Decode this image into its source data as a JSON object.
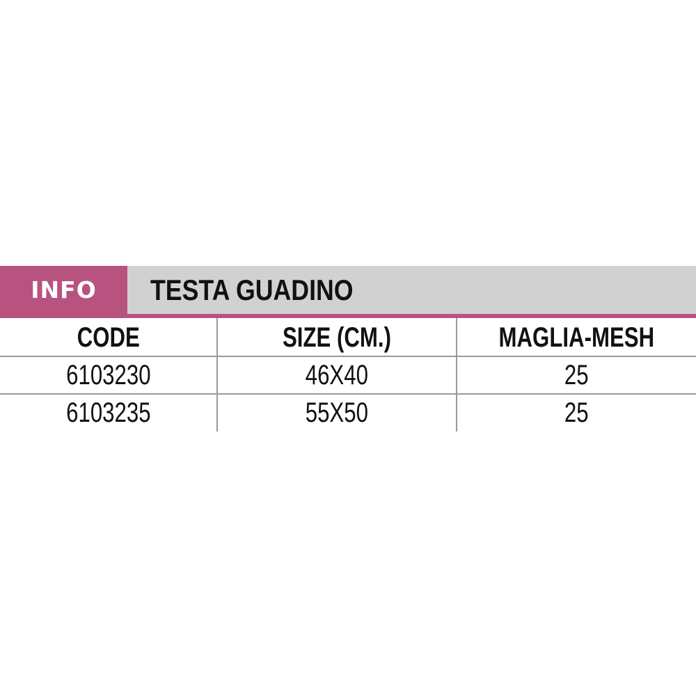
{
  "header": {
    "badge": "INFO",
    "title": "TESTA GUADINO"
  },
  "colors": {
    "accent": "#b8537f",
    "panel": "#d1d1d1",
    "grid": "#999999"
  },
  "table": {
    "columns": [
      "CODE",
      "SIZE (CM.)",
      "MAGLIA-MESH"
    ],
    "rows": [
      [
        "6103230",
        "46X40",
        "25"
      ],
      [
        "6103235",
        "55X50",
        "25"
      ]
    ]
  }
}
